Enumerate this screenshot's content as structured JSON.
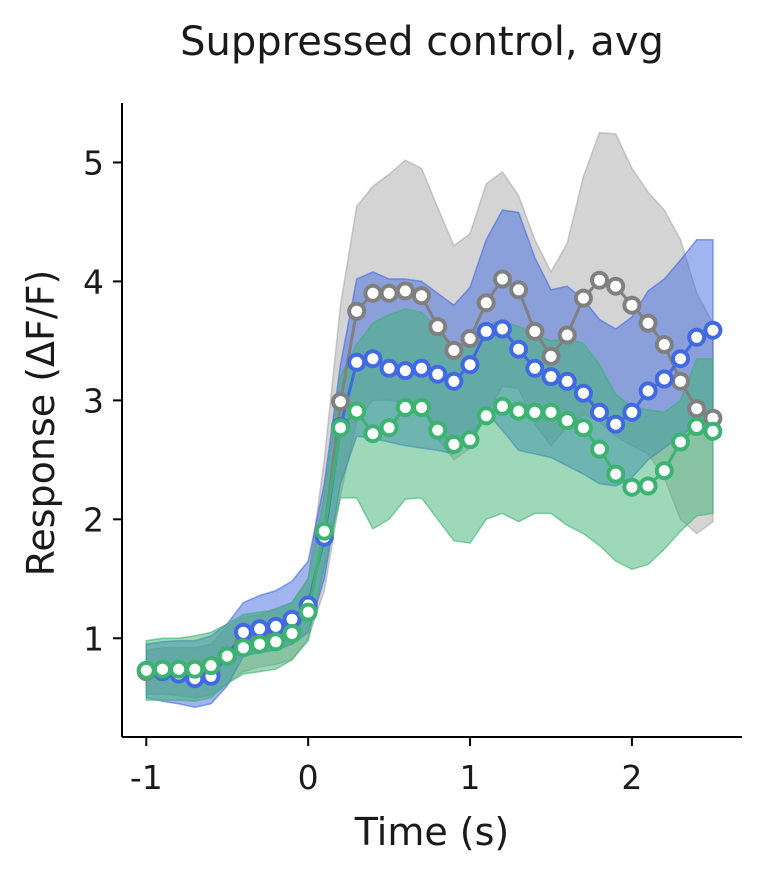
{
  "chart_data": {
    "type": "line",
    "title": "Suppressed control, avg",
    "xlabel": "Time (s)",
    "ylabel": "Response (ΔF/F)",
    "xlim": [
      -1.15,
      2.68
    ],
    "ylim": [
      0.17,
      5.5
    ],
    "xticks": [
      -1,
      0,
      1,
      2
    ],
    "yticks": [
      1,
      2,
      3,
      4,
      5
    ],
    "grid": false,
    "legend": "none",
    "series": [
      {
        "color": "#808080",
        "band_color": "#a9a9a9",
        "x": [
          -1.0,
          -0.9,
          -0.8,
          -0.7,
          -0.6,
          -0.5,
          -0.4,
          -0.3,
          -0.2,
          -0.1,
          0.0,
          0.1,
          0.2,
          0.3,
          0.4,
          0.5,
          0.6,
          0.7,
          0.8,
          0.9,
          1.0,
          1.1,
          1.2,
          1.3,
          1.4,
          1.5,
          1.6,
          1.7,
          1.8,
          1.9,
          2.0,
          2.1,
          2.2,
          2.3,
          2.4,
          2.5
        ],
        "values": [
          0.72,
          0.72,
          0.71,
          0.7,
          0.72,
          0.85,
          0.95,
          0.97,
          1.0,
          1.05,
          1.25,
          1.88,
          2.99,
          3.75,
          3.9,
          3.9,
          3.92,
          3.88,
          3.62,
          3.42,
          3.52,
          3.82,
          4.02,
          3.93,
          3.58,
          3.37,
          3.55,
          3.86,
          4.01,
          3.96,
          3.8,
          3.65,
          3.47,
          3.16,
          2.93,
          2.85
        ],
        "upper": [
          0.9,
          0.92,
          0.92,
          0.92,
          0.95,
          1.1,
          1.18,
          1.2,
          1.25,
          1.3,
          1.5,
          2.5,
          3.8,
          4.63,
          4.8,
          4.9,
          5.02,
          4.95,
          4.62,
          4.3,
          4.4,
          4.82,
          4.92,
          4.72,
          4.35,
          4.08,
          4.32,
          4.88,
          5.25,
          5.24,
          4.95,
          4.75,
          4.6,
          4.35,
          3.9,
          3.65
        ],
        "lower": [
          0.53,
          0.53,
          0.52,
          0.5,
          0.52,
          0.62,
          0.72,
          0.76,
          0.78,
          0.82,
          1.0,
          1.4,
          2.2,
          2.82,
          3.0,
          3.0,
          2.98,
          2.95,
          2.68,
          2.5,
          2.6,
          2.88,
          3.12,
          3.1,
          2.8,
          2.62,
          2.78,
          2.88,
          2.82,
          2.7,
          2.62,
          2.55,
          2.35,
          2.0,
          1.88,
          1.98
        ]
      },
      {
        "color": "#4169e1",
        "band_color": "#4169e1",
        "x": [
          -1.0,
          -0.9,
          -0.8,
          -0.7,
          -0.6,
          -0.5,
          -0.4,
          -0.3,
          -0.2,
          -0.1,
          0.0,
          0.1,
          0.2,
          0.3,
          0.4,
          0.5,
          0.6,
          0.7,
          0.8,
          0.9,
          1.0,
          1.1,
          1.2,
          1.3,
          1.4,
          1.5,
          1.6,
          1.7,
          1.8,
          1.9,
          2.0,
          2.1,
          2.2,
          2.3,
          2.4,
          2.5
        ],
        "values": [
          0.73,
          0.72,
          0.7,
          0.66,
          0.68,
          0.85,
          1.05,
          1.08,
          1.1,
          1.16,
          1.28,
          1.85,
          2.78,
          3.32,
          3.35,
          3.27,
          3.25,
          3.27,
          3.22,
          3.16,
          3.3,
          3.58,
          3.6,
          3.43,
          3.27,
          3.2,
          3.16,
          3.06,
          2.9,
          2.8,
          2.9,
          3.08,
          3.18,
          3.35,
          3.53,
          3.59
        ],
        "upper": [
          0.95,
          0.97,
          0.98,
          0.98,
          1.02,
          1.12,
          1.3,
          1.36,
          1.4,
          1.48,
          1.65,
          2.3,
          3.3,
          4.02,
          4.08,
          4.02,
          4.02,
          4.0,
          3.9,
          3.8,
          3.95,
          4.35,
          4.6,
          4.58,
          4.2,
          3.93,
          3.96,
          3.85,
          3.68,
          3.6,
          3.7,
          3.92,
          4.02,
          4.18,
          4.35,
          4.35
        ],
        "lower": [
          0.5,
          0.47,
          0.45,
          0.42,
          0.45,
          0.6,
          0.85,
          0.88,
          0.9,
          0.95,
          1.05,
          1.5,
          2.3,
          2.7,
          2.68,
          2.65,
          2.62,
          2.6,
          2.58,
          2.55,
          2.68,
          2.9,
          2.75,
          2.58,
          2.55,
          2.52,
          2.45,
          2.38,
          2.3,
          2.28,
          2.35,
          2.5,
          2.6,
          2.7,
          2.8,
          2.8
        ]
      },
      {
        "color": "#3cb371",
        "band_color": "#3cb371",
        "x": [
          -1.0,
          -0.9,
          -0.8,
          -0.7,
          -0.6,
          -0.5,
          -0.4,
          -0.3,
          -0.2,
          -0.1,
          0.0,
          0.1,
          0.2,
          0.3,
          0.4,
          0.5,
          0.6,
          0.7,
          0.8,
          0.9,
          1.0,
          1.1,
          1.2,
          1.3,
          1.4,
          1.5,
          1.6,
          1.7,
          1.8,
          1.9,
          2.0,
          2.1,
          2.2,
          2.3,
          2.4,
          2.5
        ],
        "values": [
          0.73,
          0.74,
          0.74,
          0.74,
          0.77,
          0.85,
          0.92,
          0.95,
          0.97,
          1.04,
          1.22,
          1.9,
          2.77,
          2.91,
          2.72,
          2.77,
          2.94,
          2.94,
          2.75,
          2.63,
          2.67,
          2.87,
          2.95,
          2.91,
          2.9,
          2.9,
          2.83,
          2.77,
          2.59,
          2.38,
          2.27,
          2.28,
          2.41,
          2.65,
          2.78,
          2.74
        ],
        "upper": [
          0.98,
          1.0,
          1.0,
          1.02,
          1.05,
          1.12,
          1.2,
          1.22,
          1.24,
          1.3,
          1.5,
          2.2,
          3.2,
          3.47,
          3.65,
          3.72,
          3.77,
          3.74,
          3.6,
          3.44,
          3.5,
          3.63,
          3.67,
          3.62,
          3.56,
          3.5,
          3.52,
          3.48,
          3.3,
          3.05,
          2.95,
          2.92,
          2.9,
          3.0,
          3.35,
          3.35
        ],
        "lower": [
          0.48,
          0.48,
          0.48,
          0.47,
          0.5,
          0.62,
          0.7,
          0.72,
          0.74,
          0.82,
          0.98,
          1.6,
          2.18,
          2.18,
          1.92,
          2.0,
          2.17,
          2.18,
          2.0,
          1.82,
          1.8,
          2.0,
          2.05,
          1.98,
          2.05,
          2.05,
          1.95,
          1.88,
          1.78,
          1.65,
          1.58,
          1.62,
          1.75,
          1.9,
          2.03,
          2.05
        ]
      }
    ]
  }
}
